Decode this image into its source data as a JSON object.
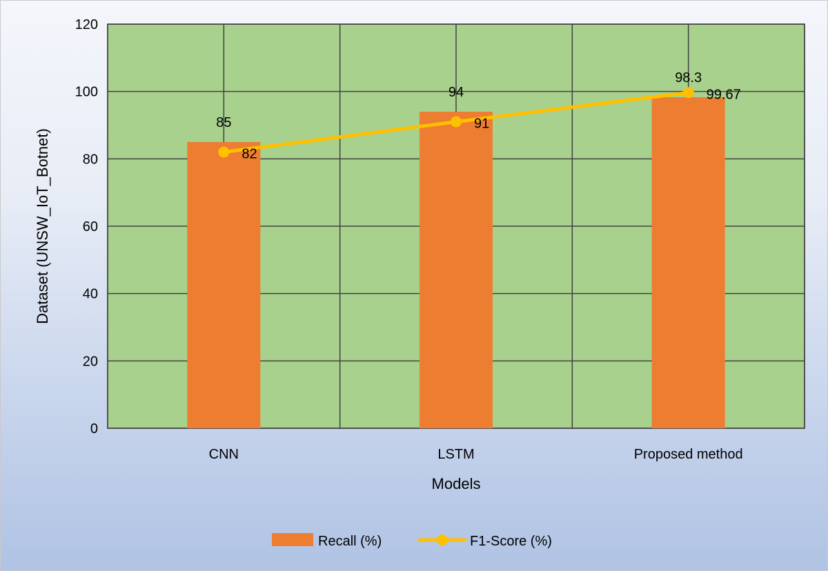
{
  "chart_data": {
    "type": "bar",
    "categories": [
      "CNN",
      "LSTM",
      "Proposed method"
    ],
    "series": [
      {
        "name": "Recall (%)",
        "type": "bar",
        "values": [
          85,
          94,
          98.3
        ],
        "labels": [
          "85",
          "94",
          "98.3"
        ],
        "color": "#ED7D31"
      },
      {
        "name": "F1-Score (%)",
        "type": "line",
        "values": [
          82,
          91,
          99.67
        ],
        "labels": [
          "82",
          "91",
          "99.67"
        ],
        "color": "#FFC000"
      }
    ],
    "xlabel": "Models",
    "ylabel": "Dataset (UNSW_IoT_Botnet)",
    "ylim": [
      0,
      120
    ],
    "yticks": [
      0,
      20,
      40,
      60,
      80,
      100,
      120
    ],
    "grid": true,
    "legend": "bottom",
    "plot_background": "#A9D18E"
  }
}
